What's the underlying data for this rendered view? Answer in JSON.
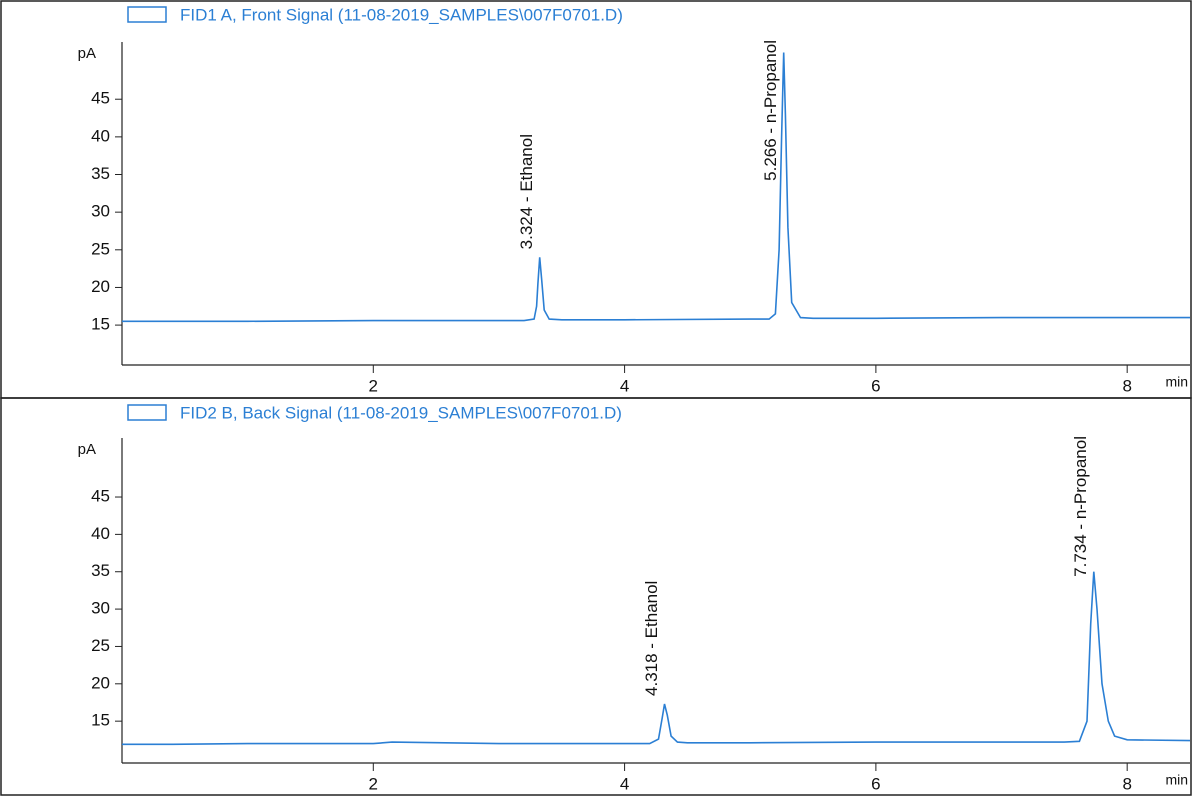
{
  "chart_data": [
    {
      "type": "line",
      "ylabel": "pA",
      "xlabel": "min",
      "xlim": [
        0,
        8.5
      ],
      "xticks": [
        2,
        4,
        6,
        8
      ],
      "ylim": [
        9.7,
        52.6
      ],
      "yticks": [
        15,
        20,
        25,
        30,
        35,
        40,
        45
      ],
      "series": [
        {
          "name": "FID1 A, Front Signal (11-08-2019_SAMPLES\\007F0701.D)",
          "color": "#2b7fd4",
          "x": [
            0,
            1,
            2,
            3,
            3.2,
            3.28,
            3.3,
            3.31,
            3.324,
            3.34,
            3.36,
            3.4,
            3.5,
            4,
            5,
            5.15,
            5.2,
            5.23,
            5.25,
            5.266,
            5.28,
            5.3,
            5.33,
            5.4,
            5.5,
            6,
            7,
            8,
            8.5
          ],
          "values": [
            15.5,
            15.5,
            15.6,
            15.6,
            15.6,
            15.8,
            17.5,
            20.5,
            24.0,
            21.0,
            17.0,
            15.8,
            15.7,
            15.7,
            15.8,
            15.8,
            16.5,
            25,
            40,
            51.2,
            43,
            28,
            18,
            16.0,
            15.9,
            15.9,
            16.0,
            16.0,
            16.0
          ]
        }
      ],
      "annotations": [
        {
          "x": 3.324,
          "label": "3.324 -  Ethanol"
        },
        {
          "x": 5.266,
          "label": "5.266 -  n-Propanol"
        }
      ]
    },
    {
      "type": "line",
      "ylabel": "pA",
      "xlabel": "min",
      "xlim": [
        0,
        8.5
      ],
      "xticks": [
        2,
        4,
        6,
        8
      ],
      "ylim": [
        9.4,
        52.9
      ],
      "yticks": [
        15,
        20,
        25,
        30,
        35,
        40,
        45
      ],
      "series": [
        {
          "name": "FID2 B, Back Signal (11-08-2019_SAMPLES\\007F0701.D)",
          "color": "#2b7fd4",
          "x": [
            0,
            0.4,
            1,
            2,
            2.15,
            3,
            4,
            4.2,
            4.27,
            4.3,
            4.318,
            4.34,
            4.37,
            4.42,
            4.5,
            5,
            6,
            7,
            7.5,
            7.62,
            7.68,
            7.71,
            7.734,
            7.76,
            7.8,
            7.85,
            7.9,
            8,
            8.5
          ],
          "values": [
            11.9,
            11.9,
            12.0,
            12.0,
            12.2,
            12.0,
            12.0,
            12.0,
            12.6,
            15.5,
            17.3,
            15.8,
            13.0,
            12.2,
            12.1,
            12.1,
            12.2,
            12.2,
            12.2,
            12.3,
            15,
            28,
            35,
            30,
            20,
            15,
            13,
            12.5,
            12.4
          ]
        }
      ],
      "annotations": [
        {
          "x": 4.318,
          "label": "4.318 -  Ethanol"
        },
        {
          "x": 7.734,
          "label": "7.734 -  n-Propanol"
        }
      ]
    }
  ]
}
